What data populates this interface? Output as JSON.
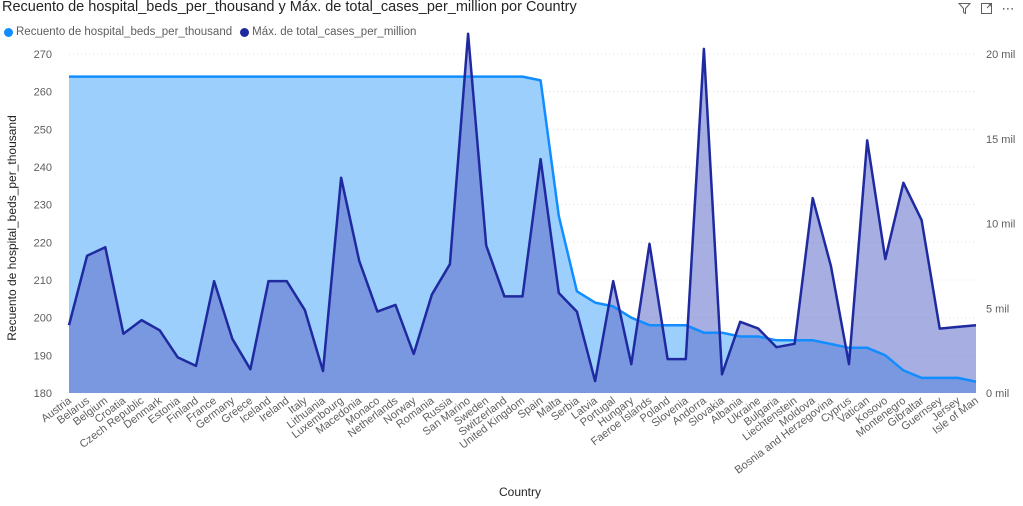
{
  "title": "Recuento de hospital_beds_per_thousand y Máx. de total_cases_per_million por Country",
  "toolbar": {
    "filter_icon": "filter-icon",
    "focus_icon": "focus-mode-icon",
    "more_icon": "more-options-icon",
    "more_label": "⋯"
  },
  "colors": {
    "series1": "#118dff",
    "series1_fill": "#9ccffb",
    "series2": "#1f2aa0",
    "series2_fill": "#5f6cc8"
  },
  "chart_data": {
    "type": "area",
    "xlabel": "Country",
    "ylabel": "Recuento de hospital_beds_per_thousand",
    "y_left": {
      "min": 180,
      "max": 270,
      "ticks": [
        "180",
        "190",
        "200",
        "210",
        "220",
        "230",
        "240",
        "250",
        "260",
        "270"
      ]
    },
    "y_right": {
      "min": 0,
      "max": 20000,
      "ticks": [
        "0 mil",
        "5 mil",
        "10 mil",
        "15 mil",
        "20 mil"
      ]
    },
    "categories": [
      "Austria",
      "Belarus",
      "Belgium",
      "Croatia",
      "Czech Republic",
      "Denmark",
      "Estonia",
      "Finland",
      "France",
      "Germany",
      "Greece",
      "Iceland",
      "Ireland",
      "Italy",
      "Lithuania",
      "Luxembourg",
      "Macedonia",
      "Monaco",
      "Netherlands",
      "Norway",
      "Romania",
      "Russia",
      "San Marino",
      "Sweden",
      "Switzerland",
      "United Kingdom",
      "Spain",
      "Malta",
      "Serbia",
      "Latvia",
      "Portugal",
      "Hungary",
      "Faeroe Islands",
      "Poland",
      "Slovenia",
      "Andorra",
      "Slovakia",
      "Albania",
      "Ukraine",
      "Bulgaria",
      "Liechtenstein",
      "Moldova",
      "Bosnia and Herzegovina",
      "Cyprus",
      "Vatican",
      "Kosovo",
      "Montenegro",
      "Gibraltar",
      "Guernsey",
      "Jersey",
      "Isle of Man"
    ],
    "series": [
      {
        "name": "Recuento de hospital_beds_per_thousand",
        "axis": "left",
        "values": [
          264,
          264,
          264,
          264,
          264,
          264,
          264,
          264,
          264,
          264,
          264,
          264,
          264,
          264,
          264,
          264,
          264,
          264,
          264,
          264,
          264,
          264,
          264,
          264,
          264,
          264,
          263,
          227,
          207,
          204,
          203,
          200,
          198,
          198,
          198,
          196,
          196,
          195,
          195,
          194,
          194,
          194,
          193,
          192,
          192,
          190,
          186,
          184,
          184,
          184,
          183
        ]
      },
      {
        "name": "Máx. de total_cases_per_million",
        "axis": "right",
        "values": [
          4000,
          8100,
          8600,
          3500,
          4300,
          3700,
          2100,
          1600,
          6600,
          3200,
          1400,
          6600,
          6600,
          4900,
          1300,
          12700,
          7800,
          4800,
          5200,
          2300,
          5800,
          7600,
          21200,
          8700,
          5700,
          5700,
          13800,
          5900,
          4800,
          700,
          6600,
          1700,
          8800,
          2000,
          2000,
          20300,
          1100,
          4200,
          3800,
          2700,
          2900,
          11500,
          7500,
          1700,
          14900,
          7900,
          12400,
          10200,
          3800,
          3900,
          4000
        ]
      }
    ]
  }
}
